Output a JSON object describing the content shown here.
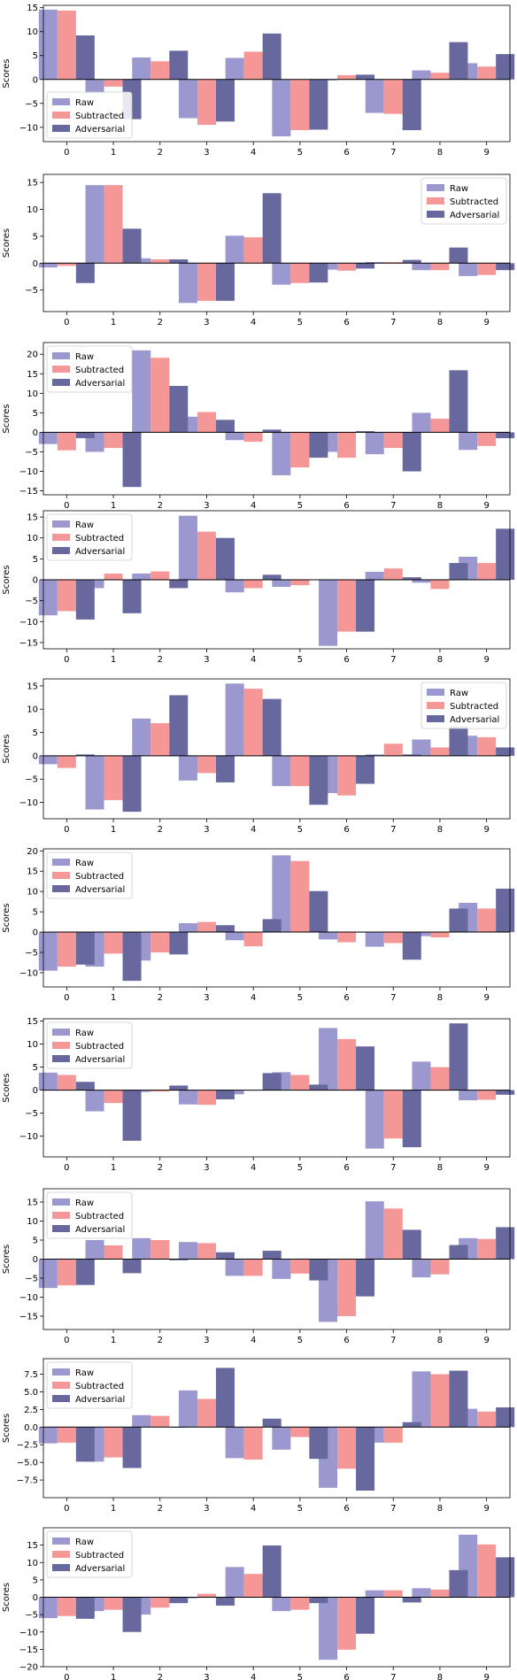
{
  "colors": {
    "Raw": "#9a98cf",
    "Subtracted": "#f59697",
    "Adversarial": "#67689e"
  },
  "chart_data": [
    {
      "type": "bar",
      "title": "",
      "xlabel": "",
      "ylabel": "Scores",
      "categories": [
        "0",
        "1",
        "2",
        "3",
        "4",
        "5",
        "6",
        "7",
        "8",
        "9"
      ],
      "ylim": [
        -13,
        15.5
      ],
      "yticks": [
        15,
        10,
        5,
        0,
        -5,
        -10
      ],
      "yticklabels": [
        "15",
        "10",
        "5",
        "0",
        "−5",
        "−10"
      ],
      "legend_position": "lower-left",
      "series": [
        {
          "name": "Raw",
          "values": [
            14.6,
            -2.9,
            4.6,
            -8.1,
            4.5,
            -11.9,
            -0.2,
            -7.0,
            1.9,
            3.4
          ]
        },
        {
          "name": "Subtracted",
          "values": [
            14.4,
            -1.5,
            3.8,
            -9.5,
            5.8,
            -10.6,
            0.9,
            -7.2,
            1.4,
            2.7
          ]
        },
        {
          "name": "Adversarial",
          "values": [
            9.2,
            -8.3,
            6.0,
            -8.8,
            9.6,
            -10.5,
            1.0,
            -10.6,
            7.8,
            5.3
          ]
        }
      ]
    },
    {
      "type": "bar",
      "title": "",
      "xlabel": "",
      "ylabel": "Scores",
      "categories": [
        "0",
        "1",
        "2",
        "3",
        "4",
        "5",
        "6",
        "7",
        "8",
        "9"
      ],
      "ylim": [
        -9,
        16.5
      ],
      "yticks": [
        15,
        10,
        5,
        0,
        -5
      ],
      "yticklabels": [
        "15",
        "10",
        "5",
        "0",
        "−5"
      ],
      "legend_position": "upper-right",
      "series": [
        {
          "name": "Raw",
          "values": [
            -0.8,
            14.5,
            0.9,
            -7.4,
            5.1,
            -4.0,
            -1.2,
            0.2,
            -1.3,
            -2.4
          ]
        },
        {
          "name": "Subtracted",
          "values": [
            -0.5,
            14.5,
            0.7,
            -7.0,
            4.8,
            -3.7,
            -1.4,
            0.2,
            -1.3,
            -2.2
          ]
        },
        {
          "name": "Adversarial",
          "values": [
            -3.7,
            6.4,
            0.7,
            -7.0,
            13.0,
            -3.6,
            -1.0,
            0.6,
            2.9,
            -1.3
          ]
        }
      ]
    },
    {
      "type": "bar",
      "title": "",
      "xlabel": "",
      "ylabel": "Scores",
      "categories": [
        "0",
        "1",
        "2",
        "3",
        "4",
        "5",
        "6",
        "7",
        "8",
        "9"
      ],
      "ylim": [
        -16,
        23
      ],
      "yticks": [
        20,
        15,
        10,
        5,
        0,
        -5,
        -10,
        -15
      ],
      "yticklabels": [
        "20",
        "15",
        "10",
        "5",
        "0",
        "−5",
        "−10",
        "−15"
      ],
      "legend_position": "upper-left",
      "series": [
        {
          "name": "Raw",
          "values": [
            -3.0,
            -5.0,
            21.0,
            4.0,
            -2.0,
            -11.0,
            -5.0,
            -5.6,
            5.0,
            -4.5
          ]
        },
        {
          "name": "Subtracted",
          "values": [
            -4.6,
            -4.0,
            19.1,
            5.2,
            -2.4,
            -9.0,
            -6.5,
            -4.0,
            3.5,
            -3.5
          ]
        },
        {
          "name": "Adversarial",
          "values": [
            -1.5,
            -14.0,
            11.9,
            3.2,
            0.7,
            -6.5,
            0.3,
            -10.0,
            15.9,
            -1.5
          ]
        }
      ]
    },
    {
      "type": "bar",
      "title": "",
      "xlabel": "",
      "ylabel": "Scores",
      "categories": [
        "0",
        "1",
        "2",
        "3",
        "4",
        "5",
        "6",
        "7",
        "8",
        "9"
      ],
      "ylim": [
        -16.5,
        16.5
      ],
      "yticks": [
        15,
        10,
        5,
        0,
        -5,
        -10,
        -15
      ],
      "yticklabels": [
        "15",
        "10",
        "5",
        "0",
        "−5",
        "−10",
        "−15"
      ],
      "legend_position": "upper-left",
      "series": [
        {
          "name": "Raw",
          "values": [
            -8.5,
            -2.0,
            1.5,
            15.3,
            -3.0,
            -1.7,
            -15.8,
            1.9,
            -0.7,
            5.5
          ]
        },
        {
          "name": "Subtracted",
          "values": [
            -7.5,
            1.5,
            2.0,
            11.5,
            -2.0,
            -1.3,
            -12.4,
            2.7,
            -2.2,
            4.0
          ]
        },
        {
          "name": "Adversarial",
          "values": [
            -9.5,
            -8.0,
            -2.0,
            10.0,
            1.2,
            0.0,
            -12.4,
            0.6,
            4.0,
            12.2
          ]
        }
      ]
    },
    {
      "type": "bar",
      "title": "",
      "xlabel": "",
      "ylabel": "Scores",
      "categories": [
        "0",
        "1",
        "2",
        "3",
        "4",
        "5",
        "6",
        "7",
        "8",
        "9"
      ],
      "ylim": [
        -13.5,
        16.5
      ],
      "yticks": [
        15,
        10,
        5,
        0,
        -5,
        -10
      ],
      "yticklabels": [
        "15",
        "10",
        "5",
        "0",
        "−5",
        "−10"
      ],
      "legend_position": "upper-right",
      "series": [
        {
          "name": "Raw",
          "values": [
            -1.8,
            -11.5,
            8.0,
            -5.3,
            15.5,
            -6.5,
            -8.0,
            0.3,
            3.5,
            4.3
          ]
        },
        {
          "name": "Subtracted",
          "values": [
            -2.6,
            -9.5,
            7.0,
            -3.7,
            14.4,
            -6.5,
            -8.5,
            2.6,
            1.8,
            4.0
          ]
        },
        {
          "name": "Adversarial",
          "values": [
            0.3,
            -12.0,
            13.0,
            -5.7,
            12.2,
            -10.5,
            -6.0,
            0.3,
            6.3,
            1.8
          ]
        }
      ]
    },
    {
      "type": "bar",
      "title": "",
      "xlabel": "",
      "ylabel": "Scores",
      "categories": [
        "0",
        "1",
        "2",
        "3",
        "4",
        "5",
        "6",
        "7",
        "8",
        "9"
      ],
      "ylim": [
        -13.5,
        20.5
      ],
      "yticks": [
        20,
        15,
        10,
        5,
        0,
        -5,
        -10
      ],
      "yticklabels": [
        "20",
        "15",
        "10",
        "5",
        "0",
        "−5",
        "−10"
      ],
      "legend_position": "upper-left",
      "series": [
        {
          "name": "Raw",
          "values": [
            -9.5,
            -8.5,
            -7.0,
            2.2,
            -2.0,
            18.9,
            -1.8,
            -3.6,
            -1.0,
            7.2
          ]
        },
        {
          "name": "Subtracted",
          "values": [
            -8.5,
            -5.3,
            -5.0,
            2.5,
            -3.5,
            17.5,
            -2.5,
            -2.7,
            -1.3,
            5.8
          ]
        },
        {
          "name": "Adversarial",
          "values": [
            -8.0,
            -12.0,
            -5.5,
            1.7,
            3.2,
            10.1,
            0.0,
            -6.8,
            5.8,
            10.7
          ]
        }
      ]
    },
    {
      "type": "bar",
      "title": "",
      "xlabel": "",
      "ylabel": "Scores",
      "categories": [
        "0",
        "1",
        "2",
        "3",
        "4",
        "5",
        "6",
        "7",
        "8",
        "9"
      ],
      "ylim": [
        -14.5,
        15.5
      ],
      "yticks": [
        15,
        10,
        5,
        0,
        -5,
        -10
      ],
      "yticklabels": [
        "15",
        "10",
        "5",
        "0",
        "−5",
        "−10"
      ],
      "legend_position": "upper-left",
      "series": [
        {
          "name": "Raw",
          "values": [
            3.8,
            -4.6,
            -0.4,
            -3.1,
            -0.9,
            3.9,
            13.5,
            -12.7,
            6.2,
            -2.2
          ]
        },
        {
          "name": "Subtracted",
          "values": [
            3.3,
            -2.8,
            -0.3,
            -3.2,
            0.0,
            3.3,
            11.1,
            -10.5,
            5.0,
            -2.1
          ]
        },
        {
          "name": "Adversarial",
          "values": [
            1.8,
            -11.0,
            1.0,
            -2.0,
            3.7,
            1.2,
            9.5,
            -12.4,
            14.5,
            -1.0
          ]
        }
      ]
    },
    {
      "type": "bar",
      "title": "",
      "xlabel": "",
      "ylabel": "Scores",
      "categories": [
        "0",
        "1",
        "2",
        "3",
        "4",
        "5",
        "6",
        "7",
        "8",
        "9"
      ],
      "ylim": [
        -18.5,
        18.5
      ],
      "yticks": [
        15,
        10,
        5,
        0,
        -5,
        -10,
        -15
      ],
      "yticklabels": [
        "15",
        "10",
        "5",
        "0",
        "−5",
        "−10",
        "−15"
      ],
      "legend_position": "upper-left",
      "series": [
        {
          "name": "Raw",
          "values": [
            -7.6,
            5.0,
            5.5,
            4.5,
            -4.4,
            -5.2,
            -16.5,
            15.2,
            -4.8,
            5.5
          ]
        },
        {
          "name": "Subtracted",
          "values": [
            -6.9,
            3.6,
            5.0,
            4.2,
            -4.4,
            -3.8,
            -15.0,
            13.3,
            -4.0,
            5.3
          ]
        },
        {
          "name": "Adversarial",
          "values": [
            -6.8,
            -3.7,
            -0.3,
            1.8,
            2.2,
            -5.6,
            -9.8,
            7.7,
            3.7,
            8.4
          ]
        }
      ]
    },
    {
      "type": "bar",
      "title": "",
      "xlabel": "",
      "ylabel": "Scores",
      "categories": [
        "0",
        "1",
        "2",
        "3",
        "4",
        "5",
        "6",
        "7",
        "8",
        "9"
      ],
      "ylim": [
        -10,
        9.7
      ],
      "yticks": [
        7.5,
        5.0,
        2.5,
        0.0,
        -2.5,
        -5.0,
        -7.5
      ],
      "yticklabels": [
        "7.5",
        "5.0",
        "2.5",
        "0.0",
        "−2.5",
        "−5.0",
        "−7.5"
      ],
      "legend_position": "upper-left",
      "series": [
        {
          "name": "Raw",
          "values": [
            -2.3,
            -4.9,
            1.7,
            5.2,
            -4.4,
            -3.2,
            -8.6,
            -2.2,
            7.9,
            2.6
          ]
        },
        {
          "name": "Subtracted",
          "values": [
            -2.2,
            -4.3,
            1.6,
            4.0,
            -4.6,
            -1.4,
            -5.9,
            -2.2,
            7.5,
            2.2
          ]
        },
        {
          "name": "Adversarial",
          "values": [
            -4.9,
            -5.8,
            0.0,
            8.4,
            1.2,
            -4.5,
            -9.0,
            0.7,
            8.0,
            2.8
          ]
        }
      ]
    },
    {
      "type": "bar",
      "title": "",
      "xlabel": "",
      "ylabel": "Scores",
      "categories": [
        "0",
        "1",
        "2",
        "3",
        "4",
        "5",
        "6",
        "7",
        "8",
        "9"
      ],
      "ylim": [
        -20,
        20
      ],
      "yticks": [
        15,
        10,
        5,
        0,
        -5,
        -10,
        -15,
        -20
      ],
      "yticklabels": [
        "15",
        "10",
        "5",
        "0",
        "−5",
        "−10",
        "−15",
        "−20"
      ],
      "legend_position": "upper-left",
      "series": [
        {
          "name": "Raw",
          "values": [
            -6.0,
            -4.0,
            -5.0,
            -0.3,
            8.7,
            -4.0,
            -18.0,
            2.0,
            2.6,
            18.0
          ]
        },
        {
          "name": "Subtracted",
          "values": [
            -5.4,
            -3.6,
            -3.0,
            1.0,
            6.7,
            -3.6,
            -15.1,
            2.0,
            2.2,
            15.2
          ]
        },
        {
          "name": "Adversarial",
          "values": [
            -6.2,
            -10.0,
            -1.7,
            -2.4,
            14.9,
            -1.7,
            -10.5,
            -1.5,
            7.8,
            11.5
          ]
        }
      ]
    }
  ]
}
